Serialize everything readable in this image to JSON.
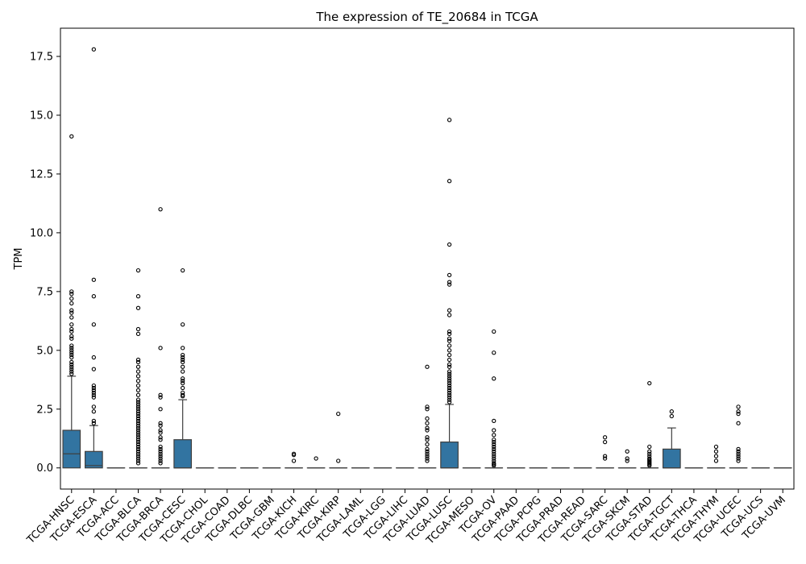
{
  "chart_data": {
    "type": "box",
    "title": "The expression of TE_20684 in TCGA",
    "xlabel": "",
    "ylabel": "TPM",
    "ylim": [
      -0.9,
      18.7
    ],
    "yticks": [
      0.0,
      2.5,
      5.0,
      7.5,
      10.0,
      12.5,
      15.0,
      17.5
    ],
    "ytick_labels": [
      "0.0",
      "2.5",
      "5.0",
      "7.5",
      "10.0",
      "12.5",
      "15.0",
      "17.5"
    ],
    "box_color": "#3274a1",
    "edge_color": "#3f3f3f",
    "grid": false,
    "legend": "none",
    "categories": [
      "TCGA-HNSC",
      "TCGA-ESCA",
      "TCGA-ACC",
      "TCGA-BLCA",
      "TCGA-BRCA",
      "TCGA-CESC",
      "TCGA-CHOL",
      "TCGA-COAD",
      "TCGA-DLBC",
      "TCGA-GBM",
      "TCGA-KICH",
      "TCGA-KIRC",
      "TCGA-KIRP",
      "TCGA-LAML",
      "TCGA-LGG",
      "TCGA-LIHC",
      "TCGA-LUAD",
      "TCGA-LUSC",
      "TCGA-MESO",
      "TCGA-OV",
      "TCGA-PAAD",
      "TCGA-PCPG",
      "TCGA-PRAD",
      "TCGA-READ",
      "TCGA-SARC",
      "TCGA-SKCM",
      "TCGA-STAD",
      "TCGA-TGCT",
      "TCGA-THCA",
      "TCGA-THYM",
      "TCGA-UCEC",
      "TCGA-UCS",
      "TCGA-UVM"
    ],
    "boxes": [
      {
        "q1": 0.0,
        "median": 0.6,
        "q3": 1.6,
        "whisker_low": 0.0,
        "whisker_high": 3.9,
        "outliers": [
          14.1,
          7.5,
          7.4,
          7.2,
          7.0,
          6.7,
          6.6,
          6.4,
          6.1,
          5.9,
          5.8,
          5.6,
          5.5,
          5.2,
          5.1,
          5.0,
          4.9,
          4.8,
          4.7,
          4.5,
          4.4,
          4.3,
          4.2,
          4.1,
          4.0
        ]
      },
      {
        "q1": 0.0,
        "median": 0.1,
        "q3": 0.7,
        "whisker_low": 0.0,
        "whisker_high": 1.8,
        "outliers": [
          17.8,
          8.0,
          7.3,
          6.1,
          4.7,
          4.2,
          3.5,
          3.4,
          3.3,
          3.2,
          3.1,
          3.0,
          2.6,
          2.4,
          2.0,
          1.9
        ]
      },
      {
        "q1": 0.0,
        "median": 0.0,
        "q3": 0.0,
        "whisker_low": 0.0,
        "whisker_high": 0.0,
        "outliers": []
      },
      {
        "q1": 0.0,
        "median": 0.0,
        "q3": 0.0,
        "whisker_low": 0.0,
        "whisker_high": 0.0,
        "outliers": [
          8.4,
          7.3,
          6.8,
          5.9,
          5.7,
          4.6,
          4.5,
          4.3,
          4.1,
          3.9,
          3.7,
          3.5,
          3.3,
          3.1,
          2.9,
          2.8,
          2.7,
          2.6,
          2.5,
          2.4,
          2.3,
          2.2,
          2.1,
          2.0,
          1.9,
          1.8,
          1.7,
          1.6,
          1.5,
          1.4,
          1.3,
          1.2,
          1.1,
          1.0,
          0.9,
          0.8,
          0.7,
          0.6,
          0.5,
          0.4,
          0.3,
          0.2
        ]
      },
      {
        "q1": 0.0,
        "median": 0.0,
        "q3": 0.0,
        "whisker_low": 0.0,
        "whisker_high": 0.0,
        "outliers": [
          11.0,
          5.1,
          3.1,
          3.0,
          2.5,
          1.9,
          1.8,
          1.6,
          1.5,
          1.3,
          1.2,
          0.9,
          0.8,
          0.7,
          0.6,
          0.5,
          0.4,
          0.3,
          0.2
        ]
      },
      {
        "q1": 0.0,
        "median": 0.0,
        "q3": 1.2,
        "whisker_low": 0.0,
        "whisker_high": 2.9,
        "outliers": [
          8.4,
          6.1,
          5.1,
          4.8,
          4.7,
          4.6,
          4.5,
          4.3,
          4.1,
          3.8,
          3.7,
          3.6,
          3.4,
          3.2,
          3.1,
          3.05
        ]
      },
      {
        "q1": 0.0,
        "median": 0.0,
        "q3": 0.0,
        "whisker_low": 0.0,
        "whisker_high": 0.0,
        "outliers": []
      },
      {
        "q1": 0.0,
        "median": 0.0,
        "q3": 0.0,
        "whisker_low": 0.0,
        "whisker_high": 0.0,
        "outliers": []
      },
      {
        "q1": 0.0,
        "median": 0.0,
        "q3": 0.0,
        "whisker_low": 0.0,
        "whisker_high": 0.0,
        "outliers": []
      },
      {
        "q1": 0.0,
        "median": 0.0,
        "q3": 0.0,
        "whisker_low": 0.0,
        "whisker_high": 0.0,
        "outliers": []
      },
      {
        "q1": 0.0,
        "median": 0.0,
        "q3": 0.0,
        "whisker_low": 0.0,
        "whisker_high": 0.0,
        "outliers": [
          0.6,
          0.55,
          0.3
        ]
      },
      {
        "q1": 0.0,
        "median": 0.0,
        "q3": 0.0,
        "whisker_low": 0.0,
        "whisker_high": 0.0,
        "outliers": [
          0.4
        ]
      },
      {
        "q1": 0.0,
        "median": 0.0,
        "q3": 0.0,
        "whisker_low": 0.0,
        "whisker_high": 0.0,
        "outliers": [
          2.3,
          0.3
        ]
      },
      {
        "q1": 0.0,
        "median": 0.0,
        "q3": 0.0,
        "whisker_low": 0.0,
        "whisker_high": 0.0,
        "outliers": []
      },
      {
        "q1": 0.0,
        "median": 0.0,
        "q3": 0.0,
        "whisker_low": 0.0,
        "whisker_high": 0.0,
        "outliers": []
      },
      {
        "q1": 0.0,
        "median": 0.0,
        "q3": 0.0,
        "whisker_low": 0.0,
        "whisker_high": 0.0,
        "outliers": []
      },
      {
        "q1": 0.0,
        "median": 0.0,
        "q3": 0.0,
        "whisker_low": 0.0,
        "whisker_high": 0.0,
        "outliers": [
          4.3,
          2.6,
          2.5,
          2.1,
          1.9,
          1.7,
          1.6,
          1.3,
          1.2,
          1.0,
          0.8,
          0.7,
          0.6,
          0.5,
          0.4,
          0.3
        ]
      },
      {
        "q1": 0.0,
        "median": 0.0,
        "q3": 1.1,
        "whisker_low": 0.0,
        "whisker_high": 2.7,
        "outliers": [
          14.8,
          12.2,
          9.5,
          8.2,
          7.9,
          7.8,
          6.7,
          6.5,
          5.8,
          5.7,
          5.5,
          5.4,
          5.2,
          5.0,
          4.8,
          4.6,
          4.4,
          4.3,
          4.1,
          4.0,
          3.9,
          3.8,
          3.7,
          3.6,
          3.5,
          3.4,
          3.3,
          3.2,
          3.1,
          3.0,
          2.9,
          2.8
        ]
      },
      {
        "q1": 0.0,
        "median": 0.0,
        "q3": 0.0,
        "whisker_low": 0.0,
        "whisker_high": 0.0,
        "outliers": []
      },
      {
        "q1": 0.0,
        "median": 0.0,
        "q3": 0.0,
        "whisker_low": 0.0,
        "whisker_high": 0.0,
        "outliers": [
          5.8,
          4.9,
          3.8,
          2.0,
          1.6,
          1.4,
          1.2,
          1.1,
          1.0,
          0.9,
          0.8,
          0.7,
          0.6,
          0.5,
          0.4,
          0.3,
          0.2,
          0.15,
          0.1
        ]
      },
      {
        "q1": 0.0,
        "median": 0.0,
        "q3": 0.0,
        "whisker_low": 0.0,
        "whisker_high": 0.0,
        "outliers": []
      },
      {
        "q1": 0.0,
        "median": 0.0,
        "q3": 0.0,
        "whisker_low": 0.0,
        "whisker_high": 0.0,
        "outliers": []
      },
      {
        "q1": 0.0,
        "median": 0.0,
        "q3": 0.0,
        "whisker_low": 0.0,
        "whisker_high": 0.0,
        "outliers": []
      },
      {
        "q1": 0.0,
        "median": 0.0,
        "q3": 0.0,
        "whisker_low": 0.0,
        "whisker_high": 0.0,
        "outliers": []
      },
      {
        "q1": 0.0,
        "median": 0.0,
        "q3": 0.0,
        "whisker_low": 0.0,
        "whisker_high": 0.0,
        "outliers": [
          1.3,
          1.1,
          0.5,
          0.4
        ]
      },
      {
        "q1": 0.0,
        "median": 0.0,
        "q3": 0.0,
        "whisker_low": 0.0,
        "whisker_high": 0.0,
        "outliers": [
          0.7,
          0.4,
          0.3
        ]
      },
      {
        "q1": 0.0,
        "median": 0.0,
        "q3": 0.0,
        "whisker_low": 0.0,
        "whisker_high": 0.0,
        "outliers": [
          3.6,
          0.9,
          0.7,
          0.6,
          0.5,
          0.4,
          0.35,
          0.3,
          0.25,
          0.2,
          0.15,
          0.1
        ]
      },
      {
        "q1": 0.0,
        "median": 0.0,
        "q3": 0.8,
        "whisker_low": 0.0,
        "whisker_high": 1.7,
        "outliers": [
          2.4,
          2.2
        ]
      },
      {
        "q1": 0.0,
        "median": 0.0,
        "q3": 0.0,
        "whisker_low": 0.0,
        "whisker_high": 0.0,
        "outliers": []
      },
      {
        "q1": 0.0,
        "median": 0.0,
        "q3": 0.0,
        "whisker_low": 0.0,
        "whisker_high": 0.0,
        "outliers": [
          0.9,
          0.7,
          0.5,
          0.3
        ]
      },
      {
        "q1": 0.0,
        "median": 0.0,
        "q3": 0.0,
        "whisker_low": 0.0,
        "whisker_high": 0.0,
        "outliers": [
          2.6,
          2.4,
          2.3,
          1.9,
          0.8,
          0.7,
          0.6,
          0.5,
          0.4,
          0.3
        ]
      },
      {
        "q1": 0.0,
        "median": 0.0,
        "q3": 0.0,
        "whisker_low": 0.0,
        "whisker_high": 0.0,
        "outliers": []
      },
      {
        "q1": 0.0,
        "median": 0.0,
        "q3": 0.0,
        "whisker_low": 0.0,
        "whisker_high": 0.0,
        "outliers": []
      }
    ]
  }
}
